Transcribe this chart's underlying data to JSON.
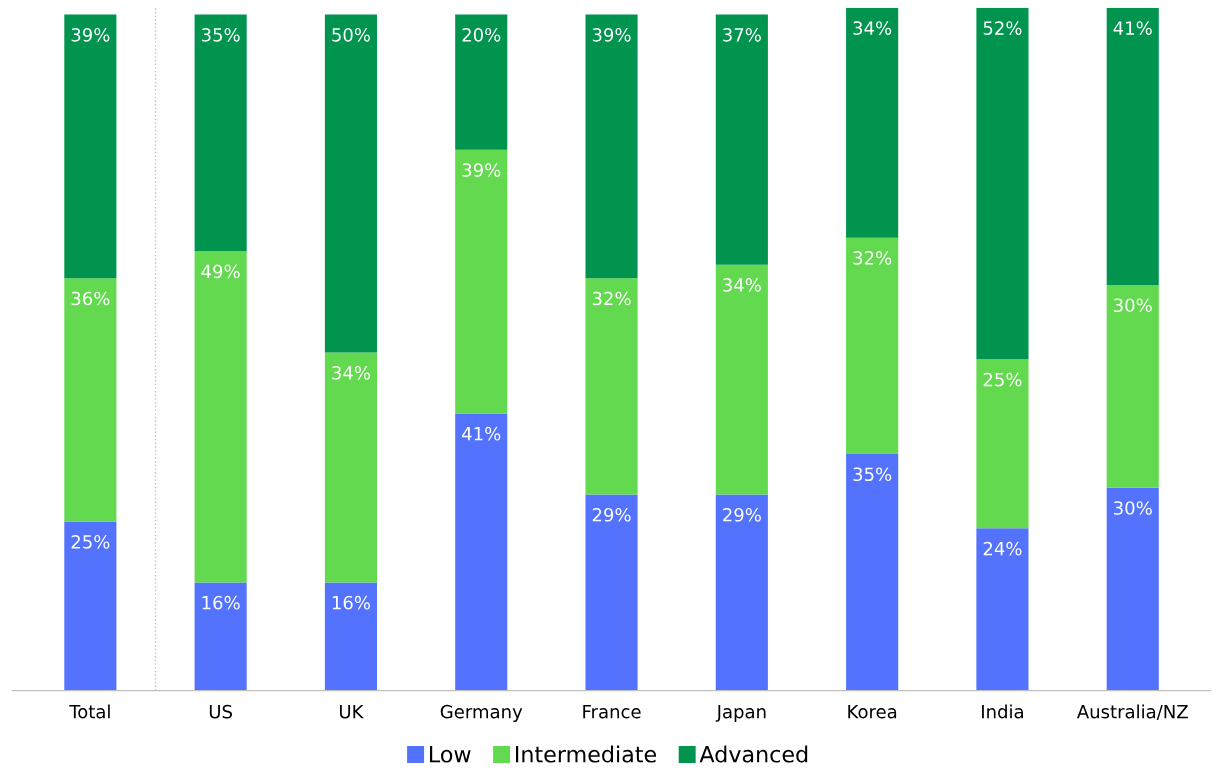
{
  "chart_data": {
    "type": "bar",
    "stacked": true,
    "legend": "bottom",
    "grid": false,
    "categories": [
      "Total",
      "US",
      "UK",
      "Germany",
      "France",
      "Japan",
      "Korea",
      "India",
      "Australia/NZ"
    ],
    "series": [
      {
        "name": "Low",
        "color": "#5373fe",
        "values": [
          25,
          16,
          16,
          41,
          29,
          29,
          35,
          24,
          30
        ],
        "value_labels": [
          "25%",
          "16%",
          "16%",
          "41%",
          "29%",
          "29%",
          "35%",
          "24%",
          "30%"
        ]
      },
      {
        "name": "Intermediate",
        "color": "#63d94f",
        "values": [
          36,
          49,
          34,
          39,
          32,
          34,
          32,
          25,
          30
        ],
        "value_labels": [
          "36%",
          "49%",
          "34%",
          "39%",
          "32%",
          "34%",
          "32%",
          "25%",
          "30%"
        ]
      },
      {
        "name": "Advanced",
        "color": "#00944f",
        "values": [
          39,
          35,
          50,
          20,
          39,
          37,
          34,
          52,
          41
        ],
        "value_labels": [
          "39%",
          "35%",
          "50%",
          "20%",
          "39%",
          "37%",
          "34%",
          "52%",
          "41%"
        ]
      }
    ]
  }
}
